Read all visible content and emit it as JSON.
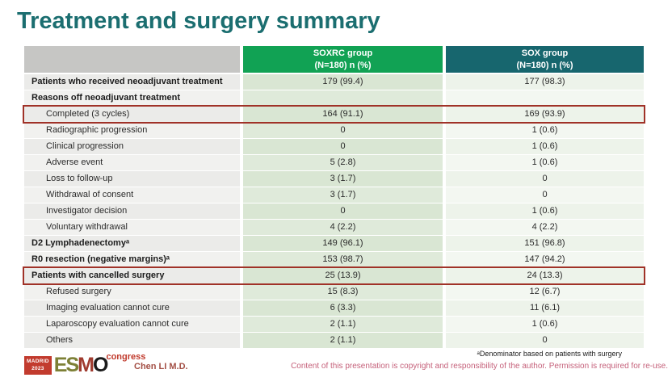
{
  "slide": {
    "title": "Treatment and surgery summary"
  },
  "colors": {
    "title_teal": "#1b6e70",
    "soxrc_header_green": "#11a254",
    "sox_header_teal": "#17666e",
    "highlight_red": "#a03228",
    "soxrc_cell_green": "#d9e6d3",
    "copyright_rose": "#c5607a"
  },
  "table": {
    "columns": [
      {
        "name": "",
        "sub": ""
      },
      {
        "name": "SOXRC group",
        "sub": "(N=180)  n (%)"
      },
      {
        "name": "SOX group",
        "sub": "(N=180)  n (%)"
      }
    ],
    "rows": [
      {
        "label": "Patients who received neoadjuvant treatment",
        "bold": true,
        "indent": false,
        "soxrc": "179 (99.4)",
        "sox": "177 (98.3)",
        "highlighted": false
      },
      {
        "label": "Reasons off neoadjuvant treatment",
        "bold": true,
        "indent": false,
        "soxrc": "",
        "sox": "",
        "highlighted": false
      },
      {
        "label": "Completed (3 cycles)",
        "bold": false,
        "indent": true,
        "soxrc": "164 (91.1)",
        "sox": "169 (93.9)",
        "highlighted": true
      },
      {
        "label": "Radiographic progression",
        "bold": false,
        "indent": true,
        "soxrc": "0",
        "sox": "1 (0.6)",
        "highlighted": false
      },
      {
        "label": "Clinical progression",
        "bold": false,
        "indent": true,
        "soxrc": "0",
        "sox": "1 (0.6)",
        "highlighted": false
      },
      {
        "label": "Adverse event",
        "bold": false,
        "indent": true,
        "soxrc": "5 (2.8)",
        "sox": "1 (0.6)",
        "highlighted": false
      },
      {
        "label": "Loss to follow-up",
        "bold": false,
        "indent": true,
        "soxrc": "3 (1.7)",
        "sox": "0",
        "highlighted": false
      },
      {
        "label": "Withdrawal of consent",
        "bold": false,
        "indent": true,
        "soxrc": "3 (1.7)",
        "sox": "0",
        "highlighted": false
      },
      {
        "label": "Investigator decision",
        "bold": false,
        "indent": true,
        "soxrc": "0",
        "sox": "1 (0.6)",
        "highlighted": false
      },
      {
        "label": "Voluntary withdrawal",
        "bold": false,
        "indent": true,
        "soxrc": "4 (2.2)",
        "sox": "4 (2.2)",
        "highlighted": false
      },
      {
        "label": "D2 Lymphadenectomyᵃ",
        "bold": true,
        "indent": false,
        "soxrc": "149 (96.1)",
        "sox": "151 (96.8)",
        "highlighted": false
      },
      {
        "label": "R0 resection (negative margins)ᵃ",
        "bold": true,
        "indent": false,
        "soxrc": "153 (98.7)",
        "sox": "147 (94.2)",
        "highlighted": false
      },
      {
        "label": "Patients with cancelled surgery",
        "bold": true,
        "indent": false,
        "soxrc": "25 (13.9)",
        "sox": "24 (13.3)",
        "highlighted": true
      },
      {
        "label": "Refused surgery",
        "bold": false,
        "indent": true,
        "soxrc": "15 (8.3)",
        "sox": "12 (6.7)",
        "highlighted": false
      },
      {
        "label": "Imaging evaluation cannot cure",
        "bold": false,
        "indent": true,
        "soxrc": "6 (3.3)",
        "sox": "11 (6.1)",
        "highlighted": false
      },
      {
        "label": "Laparoscopy evaluation cannot cure",
        "bold": false,
        "indent": true,
        "soxrc": "2 (1.1)",
        "sox": "1 (0.6)",
        "highlighted": false
      },
      {
        "label": "Others",
        "bold": false,
        "indent": true,
        "soxrc": "2 (1.1)",
        "sox": "0",
        "highlighted": false
      }
    ]
  },
  "footer": {
    "logo": {
      "location": "MADRID",
      "year": "2023",
      "letters": [
        "E",
        "S",
        "M",
        "O"
      ],
      "event": "congress"
    },
    "presenter": "Chen LI M.D.",
    "footnote": "ᵃDenominator based on patients with surgery",
    "copyright": "Content of this presentation is copyright and responsibility of the author.  Permission is required for re-use."
  }
}
